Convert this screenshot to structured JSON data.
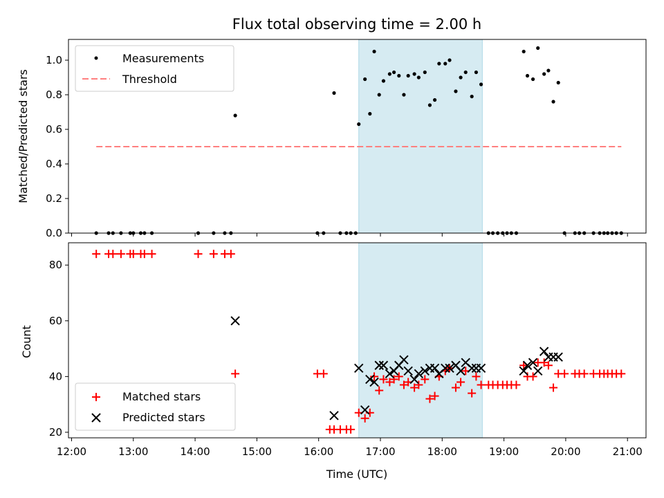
{
  "chart_data": [
    {
      "type": "scatter",
      "title": "Flux total observing time = 2.00 h",
      "xlabel": "",
      "ylabel": "Matched/Predicted stars",
      "xlim": [
        11.95,
        21.3
      ],
      "ylim": [
        0.0,
        1.12
      ],
      "yticks": [
        "0.0",
        "0.2",
        "0.4",
        "0.6",
        "0.8",
        "1.0"
      ],
      "ytick_values": [
        0.0,
        0.2,
        0.4,
        0.6,
        0.8,
        1.0
      ],
      "xtick_values": [
        12,
        13,
        14,
        15,
        16,
        17,
        18,
        19,
        20,
        21
      ],
      "shaded_region": [
        16.65,
        18.65
      ],
      "threshold": {
        "value": 0.5,
        "x_range": [
          12.4,
          20.9
        ],
        "color": "#ff7f7f"
      },
      "legend": {
        "position": "top-left",
        "entries": [
          "Measurements",
          "Threshold"
        ]
      },
      "series": [
        {
          "name": "Measurements",
          "color": "#000000",
          "points": [
            [
              12.4,
              0
            ],
            [
              12.6,
              0
            ],
            [
              12.67,
              0
            ],
            [
              12.8,
              0
            ],
            [
              12.95,
              0
            ],
            [
              13.0,
              0
            ],
            [
              13.12,
              0
            ],
            [
              13.18,
              0
            ],
            [
              13.3,
              0
            ],
            [
              14.05,
              0
            ],
            [
              14.3,
              0
            ],
            [
              14.48,
              0
            ],
            [
              14.58,
              0
            ],
            [
              14.65,
              0.68
            ],
            [
              15.98,
              0
            ],
            [
              16.08,
              0
            ],
            [
              16.25,
              0.81
            ],
            [
              16.35,
              0
            ],
            [
              16.45,
              0
            ],
            [
              16.52,
              0
            ],
            [
              16.6,
              0
            ],
            [
              16.65,
              0.63
            ],
            [
              16.75,
              0.89
            ],
            [
              16.83,
              0.69
            ],
            [
              16.9,
              1.05
            ],
            [
              16.98,
              0.8
            ],
            [
              17.05,
              0.88
            ],
            [
              17.15,
              0.92
            ],
            [
              17.22,
              0.93
            ],
            [
              17.3,
              0.91
            ],
            [
              17.38,
              0.8
            ],
            [
              17.45,
              0.91
            ],
            [
              17.55,
              0.92
            ],
            [
              17.62,
              0.9
            ],
            [
              17.72,
              0.93
            ],
            [
              17.8,
              0.74
            ],
            [
              17.88,
              0.77
            ],
            [
              17.95,
              0.98
            ],
            [
              18.05,
              0.98
            ],
            [
              18.12,
              1.0
            ],
            [
              18.22,
              0.82
            ],
            [
              18.3,
              0.9
            ],
            [
              18.38,
              0.93
            ],
            [
              18.48,
              0.79
            ],
            [
              18.55,
              0.93
            ],
            [
              18.63,
              0.86
            ],
            [
              18.75,
              0
            ],
            [
              18.82,
              0
            ],
            [
              18.9,
              0
            ],
            [
              18.98,
              0
            ],
            [
              19.05,
              0
            ],
            [
              19.12,
              0
            ],
            [
              19.2,
              0
            ],
            [
              19.32,
              1.05
            ],
            [
              19.38,
              0.91
            ],
            [
              19.47,
              0.89
            ],
            [
              19.55,
              1.07
            ],
            [
              19.65,
              0.92
            ],
            [
              19.72,
              0.94
            ],
            [
              19.8,
              0.76
            ],
            [
              19.88,
              0.87
            ],
            [
              19.98,
              0
            ],
            [
              20.15,
              0
            ],
            [
              20.22,
              0
            ],
            [
              20.3,
              0
            ],
            [
              20.45,
              0
            ],
            [
              20.55,
              0
            ],
            [
              20.62,
              0
            ],
            [
              20.68,
              0
            ],
            [
              20.75,
              0
            ],
            [
              20.82,
              0
            ],
            [
              20.9,
              0
            ]
          ]
        }
      ]
    },
    {
      "type": "scatter",
      "title": "",
      "xlabel": "Time (UTC)",
      "ylabel": "Count",
      "xlim": [
        11.95,
        21.3
      ],
      "ylim": [
        18,
        88
      ],
      "yticks": [
        "20",
        "40",
        "60",
        "80"
      ],
      "ytick_values": [
        20,
        40,
        60,
        80
      ],
      "xticks": [
        "12:00",
        "13:00",
        "14:00",
        "15:00",
        "16:00",
        "17:00",
        "18:00",
        "19:00",
        "20:00",
        "21:00"
      ],
      "xtick_values": [
        12,
        13,
        14,
        15,
        16,
        17,
        18,
        19,
        20,
        21
      ],
      "shaded_region": [
        16.65,
        18.65
      ],
      "legend": {
        "position": "bottom-left",
        "entries": [
          "Matched stars",
          "Predicted stars"
        ]
      },
      "series": [
        {
          "name": "Matched stars",
          "marker": "plus",
          "color": "#ff0000",
          "points": [
            [
              12.4,
              84
            ],
            [
              12.6,
              84
            ],
            [
              12.67,
              84
            ],
            [
              12.8,
              84
            ],
            [
              12.95,
              84
            ],
            [
              13.0,
              84
            ],
            [
              13.12,
              84
            ],
            [
              13.18,
              84
            ],
            [
              13.3,
              84
            ],
            [
              14.05,
              84
            ],
            [
              14.3,
              84
            ],
            [
              14.48,
              84
            ],
            [
              14.58,
              84
            ],
            [
              14.65,
              41
            ],
            [
              15.98,
              41
            ],
            [
              16.08,
              41
            ],
            [
              16.18,
              21
            ],
            [
              16.25,
              21
            ],
            [
              16.35,
              21
            ],
            [
              16.45,
              21
            ],
            [
              16.52,
              21
            ],
            [
              16.65,
              27
            ],
            [
              16.75,
              25
            ],
            [
              16.83,
              27
            ],
            [
              16.9,
              40
            ],
            [
              16.98,
              35
            ],
            [
              17.05,
              39
            ],
            [
              17.15,
              38
            ],
            [
              17.22,
              39
            ],
            [
              17.3,
              40
            ],
            [
              17.38,
              37
            ],
            [
              17.45,
              38
            ],
            [
              17.55,
              36
            ],
            [
              17.62,
              37
            ],
            [
              17.72,
              39
            ],
            [
              17.8,
              32
            ],
            [
              17.88,
              33
            ],
            [
              17.95,
              40
            ],
            [
              18.05,
              42
            ],
            [
              18.12,
              43
            ],
            [
              18.22,
              36
            ],
            [
              18.3,
              38
            ],
            [
              18.38,
              42
            ],
            [
              18.48,
              34
            ],
            [
              18.55,
              40
            ],
            [
              18.63,
              37
            ],
            [
              18.75,
              37
            ],
            [
              18.82,
              37
            ],
            [
              18.9,
              37
            ],
            [
              18.98,
              37
            ],
            [
              19.05,
              37
            ],
            [
              19.12,
              37
            ],
            [
              19.2,
              37
            ],
            [
              19.32,
              44
            ],
            [
              19.38,
              40
            ],
            [
              19.47,
              40
            ],
            [
              19.55,
              45
            ],
            [
              19.65,
              45
            ],
            [
              19.72,
              44
            ],
            [
              19.8,
              36
            ],
            [
              19.88,
              41
            ],
            [
              19.98,
              41
            ],
            [
              20.15,
              41
            ],
            [
              20.22,
              41
            ],
            [
              20.3,
              41
            ],
            [
              20.45,
              41
            ],
            [
              20.55,
              41
            ],
            [
              20.62,
              41
            ],
            [
              20.68,
              41
            ],
            [
              20.75,
              41
            ],
            [
              20.82,
              41
            ],
            [
              20.9,
              41
            ]
          ]
        },
        {
          "name": "Predicted stars",
          "marker": "x",
          "color": "#000000",
          "points": [
            [
              14.65,
              60
            ],
            [
              16.25,
              26
            ],
            [
              16.65,
              43
            ],
            [
              16.75,
              28
            ],
            [
              16.83,
              39
            ],
            [
              16.9,
              38
            ],
            [
              16.98,
              44
            ],
            [
              17.05,
              44
            ],
            [
              17.15,
              41
            ],
            [
              17.22,
              42
            ],
            [
              17.3,
              44
            ],
            [
              17.38,
              46
            ],
            [
              17.45,
              42
            ],
            [
              17.55,
              39
            ],
            [
              17.62,
              41
            ],
            [
              17.72,
              42
            ],
            [
              17.8,
              43
            ],
            [
              17.88,
              43
            ],
            [
              17.95,
              41
            ],
            [
              18.05,
              43
            ],
            [
              18.12,
              43
            ],
            [
              18.22,
              44
            ],
            [
              18.3,
              42
            ],
            [
              18.38,
              45
            ],
            [
              18.48,
              43
            ],
            [
              18.55,
              43
            ],
            [
              18.63,
              43
            ],
            [
              19.32,
              42
            ],
            [
              19.38,
              44
            ],
            [
              19.47,
              45
            ],
            [
              19.55,
              42
            ],
            [
              19.65,
              49
            ],
            [
              19.72,
              47
            ],
            [
              19.8,
              47
            ],
            [
              19.88,
              47
            ]
          ]
        }
      ]
    }
  ]
}
